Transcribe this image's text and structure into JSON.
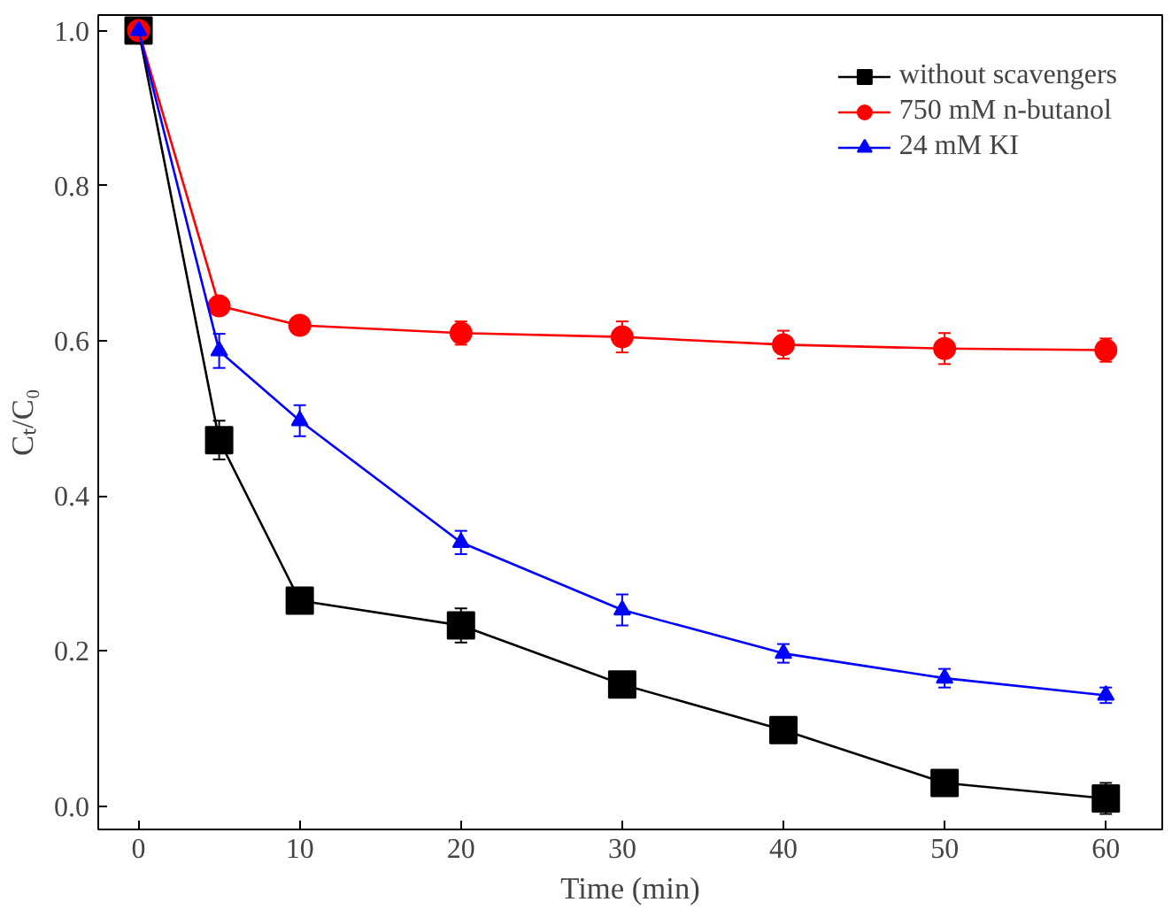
{
  "chart_data": {
    "type": "line",
    "xlabel": "Time (min)",
    "ylabel": "Cₜ/C₀",
    "x": [
      0,
      5,
      10,
      20,
      30,
      40,
      50,
      60
    ],
    "xlim": [
      -2.5,
      63.5
    ],
    "xticks": [
      0,
      10,
      20,
      30,
      40,
      50,
      60
    ],
    "ylim": [
      -0.03,
      1.02
    ],
    "yticks": [
      {
        "value": 0,
        "label": "0.0"
      },
      0.2,
      0.4,
      0.6,
      0.8,
      {
        "value": 1,
        "label": "1.0"
      }
    ],
    "grid": false,
    "legend": "top right",
    "series": [
      {
        "name": "without scavengers",
        "color": "#000000",
        "marker": "square",
        "values": [
          1.0,
          0.472,
          0.265,
          0.233,
          0.157,
          0.098,
          0.03,
          0.01
        ],
        "errors": [
          null,
          0.025,
          0.01,
          0.022,
          0.008,
          0.007,
          0.005,
          0.02
        ]
      },
      {
        "name": "750 mM n-butanol",
        "color": "#ff0000",
        "marker": "circle",
        "values": [
          1.0,
          0.645,
          0.62,
          0.61,
          0.605,
          0.595,
          0.59,
          0.588
        ],
        "errors": [
          null,
          0.008,
          0.01,
          0.015,
          0.02,
          0.018,
          0.02,
          0.015
        ]
      },
      {
        "name": "24 mM KI",
        "color": "#0000ff",
        "marker": "triangle",
        "values": [
          1.0,
          0.587,
          0.497,
          0.34,
          0.253,
          0.197,
          0.165,
          0.143
        ],
        "errors": [
          null,
          0.022,
          0.02,
          0.015,
          0.02,
          0.012,
          0.012,
          0.01
        ]
      }
    ]
  }
}
